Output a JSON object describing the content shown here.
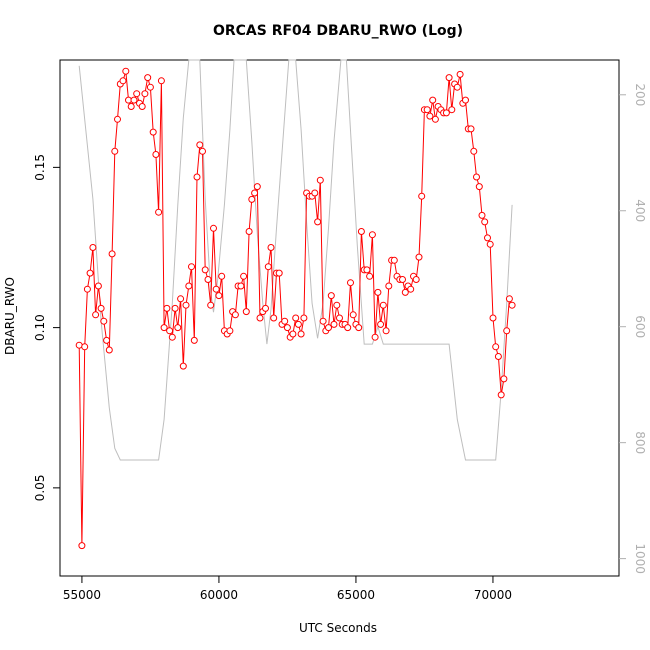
{
  "chart_data": {
    "type": "line",
    "title": "ORCAS RF04 DBARU_RWO (Log)",
    "xlabel": "UTC Seconds",
    "ylabel": "DBARU_RWO",
    "xlim": [
      54200,
      74600
    ],
    "ylim": [
      0.0225,
      0.1835
    ],
    "y2lim": [
      140,
      1030
    ],
    "x_ticks": [
      55000,
      60000,
      65000,
      70000
    ],
    "x_tick_labels": [
      "55000",
      "60000",
      "65000",
      "70000"
    ],
    "y_ticks": [
      0.05,
      0.1,
      0.15
    ],
    "y_tick_labels": [
      "0.05",
      "0.10",
      "0.15"
    ],
    "y2_ticks": [
      200,
      400,
      600,
      800,
      1000
    ],
    "y2_tick_labels": [
      "200",
      "400",
      "600",
      "800",
      "1000"
    ],
    "y2_inverted": true,
    "grid": false,
    "series": [
      {
        "color": "#ff0000",
        "style": "line-with-open-circles",
        "points": [
          [
            54900,
            0.0945
          ],
          [
            55000,
            0.032
          ],
          [
            55100,
            0.094
          ],
          [
            55200,
            0.112
          ],
          [
            55300,
            0.117
          ],
          [
            55400,
            0.125
          ],
          [
            55500,
            0.104
          ],
          [
            55600,
            0.113
          ],
          [
            55700,
            0.106
          ],
          [
            55800,
            0.102
          ],
          [
            55900,
            0.096
          ],
          [
            56000,
            0.093
          ],
          [
            56100,
            0.123
          ],
          [
            56200,
            0.155
          ],
          [
            56300,
            0.165
          ],
          [
            56400,
            0.176
          ],
          [
            56500,
            0.177
          ],
          [
            56600,
            0.18
          ],
          [
            56700,
            0.171
          ],
          [
            56800,
            0.169
          ],
          [
            56900,
            0.171
          ],
          [
            57000,
            0.173
          ],
          [
            57100,
            0.17
          ],
          [
            57200,
            0.169
          ],
          [
            57300,
            0.173
          ],
          [
            57400,
            0.178
          ],
          [
            57500,
            0.175
          ],
          [
            57600,
            0.161
          ],
          [
            57700,
            0.154
          ],
          [
            57800,
            0.136
          ],
          [
            57900,
            0.177
          ],
          [
            58000,
            0.1
          ],
          [
            58100,
            0.106
          ],
          [
            58200,
            0.099
          ],
          [
            58300,
            0.097
          ],
          [
            58400,
            0.106
          ],
          [
            58500,
            0.1
          ],
          [
            58600,
            0.109
          ],
          [
            58700,
            0.088
          ],
          [
            58800,
            0.107
          ],
          [
            58900,
            0.113
          ],
          [
            59000,
            0.119
          ],
          [
            59100,
            0.096
          ],
          [
            59200,
            0.147
          ],
          [
            59300,
            0.157
          ],
          [
            59400,
            0.155
          ],
          [
            59500,
            0.118
          ],
          [
            59600,
            0.115
          ],
          [
            59700,
            0.107
          ],
          [
            59800,
            0.131
          ],
          [
            59900,
            0.112
          ],
          [
            60000,
            0.11
          ],
          [
            60100,
            0.116
          ],
          [
            60200,
            0.099
          ],
          [
            60300,
            0.098
          ],
          [
            60400,
            0.099
          ],
          [
            60500,
            0.105
          ],
          [
            60600,
            0.104
          ],
          [
            60700,
            0.113
          ],
          [
            60800,
            0.113
          ],
          [
            60900,
            0.116
          ],
          [
            61000,
            0.105
          ],
          [
            61100,
            0.13
          ],
          [
            61200,
            0.14
          ],
          [
            61300,
            0.142
          ],
          [
            61400,
            0.144
          ],
          [
            61500,
            0.103
          ],
          [
            61600,
            0.105
          ],
          [
            61700,
            0.106
          ],
          [
            61800,
            0.119
          ],
          [
            61900,
            0.125
          ],
          [
            62000,
            0.103
          ],
          [
            62100,
            0.117
          ],
          [
            62200,
            0.117
          ],
          [
            62300,
            0.101
          ],
          [
            62400,
            0.102
          ],
          [
            62500,
            0.1
          ],
          [
            62600,
            0.097
          ],
          [
            62700,
            0.098
          ],
          [
            62800,
            0.103
          ],
          [
            62900,
            0.101
          ],
          [
            63000,
            0.098
          ],
          [
            63100,
            0.103
          ],
          [
            63200,
            0.142
          ],
          [
            63300,
            0.141
          ],
          [
            63400,
            0.141
          ],
          [
            63500,
            0.142
          ],
          [
            63600,
            0.133
          ],
          [
            63700,
            0.146
          ],
          [
            63800,
            0.102
          ],
          [
            63900,
            0.099
          ],
          [
            64000,
            0.1
          ],
          [
            64100,
            0.11
          ],
          [
            64200,
            0.101
          ],
          [
            64300,
            0.107
          ],
          [
            64400,
            0.103
          ],
          [
            64500,
            0.101
          ],
          [
            64600,
            0.101
          ],
          [
            64700,
            0.1
          ],
          [
            64800,
            0.114
          ],
          [
            64900,
            0.104
          ],
          [
            65000,
            0.101
          ],
          [
            65100,
            0.1
          ],
          [
            65200,
            0.13
          ],
          [
            65300,
            0.118
          ],
          [
            65400,
            0.118
          ],
          [
            65500,
            0.116
          ],
          [
            65600,
            0.129
          ],
          [
            65700,
            0.097
          ],
          [
            65800,
            0.111
          ],
          [
            65900,
            0.101
          ],
          [
            66000,
            0.107
          ],
          [
            66100,
            0.099
          ],
          [
            66200,
            0.113
          ],
          [
            66300,
            0.121
          ],
          [
            66400,
            0.121
          ],
          [
            66500,
            0.116
          ],
          [
            66600,
            0.115
          ],
          [
            66700,
            0.115
          ],
          [
            66800,
            0.111
          ],
          [
            66900,
            0.113
          ],
          [
            67000,
            0.112
          ],
          [
            67100,
            0.116
          ],
          [
            67200,
            0.115
          ],
          [
            67300,
            0.122
          ],
          [
            67400,
            0.141
          ],
          [
            67500,
            0.168
          ],
          [
            67600,
            0.168
          ],
          [
            67700,
            0.166
          ],
          [
            67800,
            0.171
          ],
          [
            67900,
            0.165
          ],
          [
            68000,
            0.169
          ],
          [
            68100,
            0.168
          ],
          [
            68200,
            0.167
          ],
          [
            68300,
            0.167
          ],
          [
            68400,
            0.178
          ],
          [
            68500,
            0.168
          ],
          [
            68600,
            0.176
          ],
          [
            68700,
            0.175
          ],
          [
            68800,
            0.179
          ],
          [
            68900,
            0.17
          ],
          [
            69000,
            0.171
          ],
          [
            69100,
            0.162
          ],
          [
            69200,
            0.162
          ],
          [
            69300,
            0.155
          ],
          [
            69400,
            0.147
          ],
          [
            69500,
            0.144
          ],
          [
            69600,
            0.135
          ],
          [
            69700,
            0.133
          ],
          [
            69800,
            0.128
          ],
          [
            69900,
            0.126
          ],
          [
            70000,
            0.103
          ],
          [
            70100,
            0.094
          ],
          [
            70200,
            0.091
          ],
          [
            70300,
            0.079
          ],
          [
            70400,
            0.084
          ],
          [
            70500,
            0.099
          ],
          [
            70600,
            0.109
          ],
          [
            70700,
            0.107
          ]
        ]
      },
      {
        "color": "#bebebe",
        "style": "line",
        "axis": "right",
        "points": [
          [
            54900,
            150
          ],
          [
            55400,
            380
          ],
          [
            55700,
            590
          ],
          [
            56000,
            740
          ],
          [
            56200,
            810
          ],
          [
            56400,
            830
          ],
          [
            56600,
            830
          ],
          [
            57800,
            830
          ],
          [
            58000,
            760
          ],
          [
            58300,
            560
          ],
          [
            58500,
            390
          ],
          [
            58700,
            240
          ],
          [
            58900,
            140
          ],
          [
            59300,
            140
          ],
          [
            59500,
            380
          ],
          [
            59700,
            540
          ],
          [
            59800,
            575
          ],
          [
            59950,
            520
          ],
          [
            60200,
            390
          ],
          [
            60400,
            260
          ],
          [
            60550,
            140
          ],
          [
            61000,
            140
          ],
          [
            61200,
            280
          ],
          [
            61400,
            440
          ],
          [
            61600,
            560
          ],
          [
            61750,
            630
          ],
          [
            61900,
            570
          ],
          [
            62100,
            430
          ],
          [
            62300,
            300
          ],
          [
            62550,
            140
          ],
          [
            62800,
            140
          ],
          [
            63000,
            260
          ],
          [
            63200,
            420
          ],
          [
            63400,
            560
          ],
          [
            63600,
            620
          ],
          [
            63800,
            560
          ],
          [
            64000,
            430
          ],
          [
            64200,
            280
          ],
          [
            64450,
            140
          ],
          [
            64650,
            140
          ],
          [
            64850,
            300
          ],
          [
            65050,
            460
          ],
          [
            65300,
            630
          ],
          [
            65600,
            630
          ],
          [
            65800,
            600
          ],
          [
            66000,
            630
          ],
          [
            68400,
            630
          ],
          [
            68700,
            760
          ],
          [
            69000,
            830
          ],
          [
            70100,
            830
          ],
          [
            70300,
            710
          ],
          [
            70500,
            560
          ],
          [
            70700,
            390
          ]
        ]
      }
    ]
  }
}
